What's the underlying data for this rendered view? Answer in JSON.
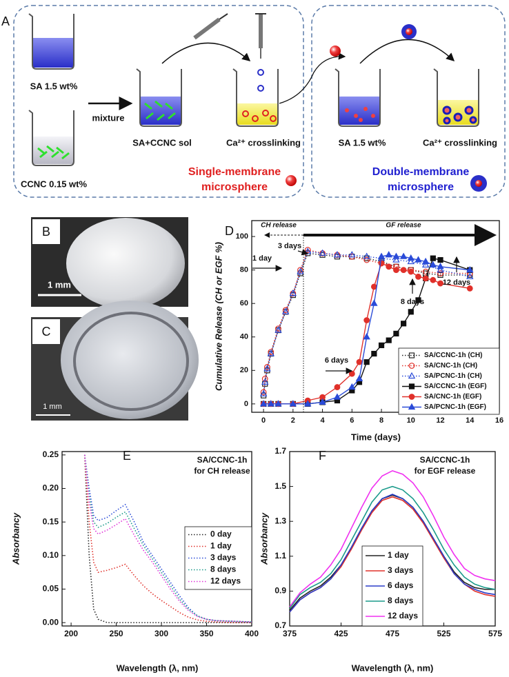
{
  "diagram": {
    "label": "A",
    "sa_label": "SA 1.5 wt%",
    "ccnc_label": "CCNC 0.15 wt%",
    "mixture": "mixture",
    "sol_label": "SA+CCNC sol",
    "crosslink_1": "Ca²⁺ crosslinking",
    "single": [
      "Single-membrane",
      "microsphere"
    ],
    "sa_label_2": "SA 1.5 wt%",
    "crosslink_2": "Ca²⁺ crosslinking",
    "double": [
      "Double-membrane",
      "microsphere"
    ]
  },
  "images": [
    {
      "label": "B",
      "scale": "1 mm"
    },
    {
      "label": "C",
      "scale": "1 mm"
    }
  ],
  "chart_data": [
    {
      "panel": "D",
      "type": "line",
      "xlabel": "Time (days)",
      "ylabel": "Cumulative Release (CH or EGF %)",
      "annotations": [
        "CH release",
        "GF release",
        "1 day",
        "3 days",
        "6 days",
        "8 days",
        "12 days"
      ],
      "xlim": [
        -0.8,
        16
      ],
      "ylim": [
        -5,
        109.5
      ],
      "xticks": [
        0,
        2,
        4,
        6,
        8,
        10,
        12,
        14,
        16
      ],
      "yticks": [
        0,
        20,
        40,
        60,
        80,
        100
      ],
      "legend": "lower right",
      "series": [
        {
          "name": "SA/CCNC-1h (CH)",
          "color": "#222222",
          "dash": "dotted",
          "marker": "square",
          "filled": false,
          "x": [
            0,
            0.1,
            0.25,
            0.5,
            1,
            1.5,
            2,
            2.5,
            3,
            4,
            5,
            6,
            7,
            8,
            9,
            10,
            11,
            12,
            14
          ],
          "values": [
            5,
            12,
            20,
            30,
            44,
            55,
            65,
            78,
            90,
            89,
            88,
            88,
            87,
            85,
            82,
            80,
            78,
            77,
            77
          ]
        },
        {
          "name": "SA/CNC-1h (CH)",
          "color": "#e0302a",
          "dash": "dotted",
          "marker": "circle",
          "filled": false,
          "x": [
            0,
            0.1,
            0.25,
            0.5,
            1,
            1.5,
            2,
            2.5,
            3,
            4,
            5,
            6,
            7,
            8,
            9,
            10,
            11,
            12,
            14
          ],
          "values": [
            7,
            15,
            22,
            31,
            45,
            56,
            66,
            80,
            92,
            90,
            89,
            88,
            86,
            84,
            82,
            80,
            79,
            78,
            78
          ]
        },
        {
          "name": "SA/PCNC-1h (CH)",
          "color": "#2a4bd8",
          "dash": "dotted",
          "marker": "triangle",
          "filled": false,
          "x": [
            0,
            0.1,
            0.25,
            0.5,
            1,
            1.5,
            2,
            2.5,
            3,
            4,
            5,
            6,
            7,
            8,
            9,
            10,
            11,
            12,
            14
          ],
          "values": [
            6,
            13,
            21,
            30,
            44,
            55,
            66,
            79,
            91,
            90,
            89,
            89,
            88,
            87,
            86,
            85,
            83,
            80,
            76
          ]
        },
        {
          "name": "SA/CCNC-1h (EGF)",
          "color": "#111111",
          "dash": "solid",
          "marker": "square",
          "filled": true,
          "x": [
            0,
            0.5,
            1,
            2,
            3,
            4,
            5,
            6,
            6.5,
            7,
            7.5,
            8,
            8.5,
            9,
            9.5,
            10,
            10.5,
            11,
            11.5,
            12,
            14
          ],
          "values": [
            0,
            0,
            0,
            0,
            0,
            1,
            2,
            8,
            13,
            25,
            30,
            35,
            38,
            42,
            48,
            55,
            62,
            75,
            87,
            86,
            80
          ]
        },
        {
          "name": "SA/CNC-1h (EGF)",
          "color": "#e0302a",
          "dash": "solid",
          "marker": "circle",
          "filled": true,
          "x": [
            0,
            0.5,
            1,
            2,
            3,
            4,
            5,
            6,
            6.5,
            7,
            7.5,
            8,
            8.5,
            9,
            9.5,
            10,
            10.5,
            11,
            11.5,
            12,
            14
          ],
          "values": [
            0,
            0,
            0,
            0,
            2,
            4,
            10,
            18,
            25,
            50,
            70,
            84,
            82,
            80,
            80,
            79,
            76,
            75,
            74,
            72,
            69
          ]
        },
        {
          "name": "SA/PCNC-1h (EGF)",
          "color": "#2a4bd8",
          "dash": "solid",
          "marker": "triangle",
          "filled": true,
          "x": [
            0,
            0.5,
            1,
            2,
            3,
            4,
            5,
            6,
            6.5,
            7,
            7.5,
            8,
            8.5,
            9,
            9.5,
            10,
            10.5,
            11,
            11.5,
            12,
            14
          ],
          "values": [
            0,
            0,
            0,
            0,
            0,
            1,
            4,
            10,
            15,
            40,
            60,
            88,
            89,
            88,
            88,
            87,
            86,
            85,
            83,
            82,
            80
          ]
        }
      ]
    },
    {
      "panel": "E",
      "type": "line",
      "title": [
        "SA/CCNC-1h",
        "for CH release"
      ],
      "xlabel": "Wavelength (λ, nm)",
      "ylabel": "Absorbancy",
      "xlim": [
        190,
        400
      ],
      "ylim": [
        -0.005,
        0.255
      ],
      "xticks": [
        200,
        250,
        300,
        350,
        400
      ],
      "yticks": [
        {
          "value": 0,
          "label": "0.00"
        },
        {
          "value": 0.05,
          "label": "0.05"
        },
        {
          "value": 0.1,
          "label": "0.10"
        },
        {
          "value": 0.15,
          "label": "0.15"
        },
        {
          "value": 0.2,
          "label": "0.20"
        },
        {
          "value": 0.25,
          "label": "0.25"
        }
      ],
      "legend": "center right",
      "x": [
        215,
        220,
        225,
        230,
        240,
        250,
        260,
        270,
        280,
        290,
        300,
        310,
        320,
        330,
        340,
        350,
        360,
        380,
        400
      ],
      "series": [
        {
          "name": "0 day",
          "color": "#222222",
          "dash": "dotted",
          "values": [
            0.25,
            0.1,
            0.02,
            0.005,
            0,
            0,
            0,
            0,
            0,
            0,
            0,
            0,
            0,
            0,
            0,
            0,
            0,
            0,
            0
          ]
        },
        {
          "name": "1 day",
          "color": "#e0302a",
          "dash": "dotted",
          "values": [
            0.25,
            0.15,
            0.09,
            0.075,
            0.078,
            0.082,
            0.087,
            0.07,
            0.055,
            0.043,
            0.033,
            0.024,
            0.015,
            0.008,
            0.004,
            0.002,
            0.001,
            0,
            0
          ]
        },
        {
          "name": "3 days",
          "color": "#2a4bd8",
          "dash": "dotted",
          "values": [
            0.25,
            0.2,
            0.16,
            0.152,
            0.157,
            0.167,
            0.176,
            0.15,
            0.12,
            0.1,
            0.08,
            0.06,
            0.04,
            0.022,
            0.01,
            0.005,
            0.003,
            0.002,
            0.001
          ]
        },
        {
          "name": "8 days",
          "color": "#1a9a8a",
          "dash": "dotted",
          "values": [
            0.25,
            0.19,
            0.15,
            0.142,
            0.148,
            0.157,
            0.165,
            0.14,
            0.115,
            0.095,
            0.075,
            0.055,
            0.035,
            0.02,
            0.01,
            0.005,
            0.003,
            0.002,
            0.001
          ]
        },
        {
          "name": "12 days",
          "color": "#e030d8",
          "dash": "dotted",
          "values": [
            0.25,
            0.18,
            0.14,
            0.132,
            0.138,
            0.146,
            0.155,
            0.13,
            0.108,
            0.09,
            0.07,
            0.05,
            0.032,
            0.018,
            0.009,
            0.005,
            0.003,
            0.002,
            0.001
          ]
        }
      ]
    },
    {
      "panel": "F",
      "type": "line",
      "title": [
        "SA/CCNC-1h",
        "for EGF release"
      ],
      "xlabel": "Wavelength (λ, nm)",
      "ylabel": "Absorbancy",
      "xlim": [
        375,
        575
      ],
      "ylim": [
        0.7,
        1.7
      ],
      "xticks": [
        375,
        425,
        475,
        525,
        575
      ],
      "yticks": [
        0.7,
        0.9,
        1.1,
        1.3,
        1.5,
        1.7
      ],
      "legend": "lower center",
      "x": [
        375,
        385,
        395,
        405,
        415,
        425,
        435,
        445,
        455,
        465,
        475,
        485,
        495,
        505,
        515,
        525,
        535,
        545,
        555,
        565,
        575
      ],
      "series": [
        {
          "name": "1 day",
          "color": "#222222",
          "dash": "solid",
          "values": [
            0.79,
            0.86,
            0.9,
            0.93,
            0.98,
            1.05,
            1.15,
            1.26,
            1.36,
            1.43,
            1.45,
            1.43,
            1.38,
            1.3,
            1.2,
            1.1,
            1.01,
            0.95,
            0.92,
            0.91,
            0.91
          ]
        },
        {
          "name": "3 days",
          "color": "#e0302a",
          "dash": "solid",
          "values": [
            0.78,
            0.85,
            0.89,
            0.92,
            0.97,
            1.04,
            1.14,
            1.25,
            1.35,
            1.42,
            1.44,
            1.42,
            1.37,
            1.29,
            1.19,
            1.09,
            1.0,
            0.94,
            0.9,
            0.88,
            0.87
          ]
        },
        {
          "name": "6 days",
          "color": "#2a3bc8",
          "dash": "solid",
          "values": [
            0.78,
            0.85,
            0.89,
            0.92,
            0.97,
            1.05,
            1.15,
            1.26,
            1.36,
            1.43,
            1.455,
            1.43,
            1.38,
            1.3,
            1.2,
            1.1,
            1.0,
            0.94,
            0.91,
            0.89,
            0.88
          ]
        },
        {
          "name": "8 days",
          "color": "#1a9a8a",
          "dash": "solid",
          "values": [
            0.8,
            0.88,
            0.92,
            0.95,
            1.0,
            1.08,
            1.19,
            1.3,
            1.41,
            1.48,
            1.5,
            1.48,
            1.43,
            1.35,
            1.25,
            1.14,
            1.05,
            0.98,
            0.94,
            0.92,
            0.91
          ]
        },
        {
          "name": "12 days",
          "color": "#f030f0",
          "dash": "solid",
          "values": [
            0.81,
            0.89,
            0.94,
            0.98,
            1.05,
            1.14,
            1.26,
            1.38,
            1.49,
            1.56,
            1.59,
            1.57,
            1.52,
            1.44,
            1.33,
            1.21,
            1.11,
            1.03,
            0.99,
            0.97,
            0.96
          ]
        }
      ]
    }
  ]
}
